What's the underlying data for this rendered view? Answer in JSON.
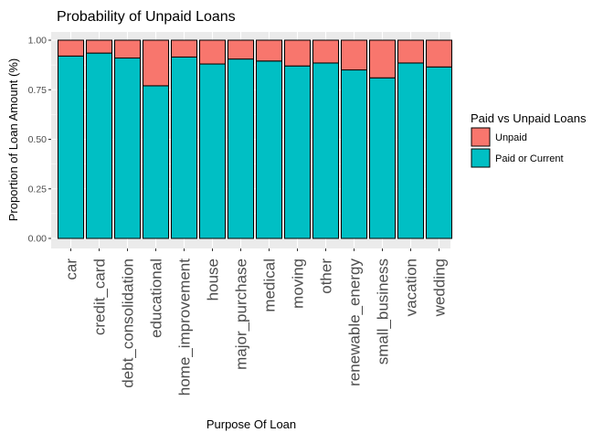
{
  "chart_data": {
    "type": "bar",
    "stacked": true,
    "title": "Probability of Unpaid Loans",
    "xlabel": "Purpose Of Loan",
    "ylabel": "Proportion of Loan Amount (%)",
    "ylim": [
      0,
      1
    ],
    "y_ticks": [
      "0.00",
      "0.25",
      "0.50",
      "0.75",
      "1.00"
    ],
    "grid": true,
    "legend_position": "right",
    "legend_title": "Paid vs Unpaid Loans",
    "categories": [
      "car",
      "credit_card",
      "debt_consolidation",
      "educational",
      "home_improvement",
      "house",
      "major_purchase",
      "medical",
      "moving",
      "other",
      "renewable_energy",
      "small_business",
      "vacation",
      "wedding"
    ],
    "series": [
      {
        "name": "Paid or Current",
        "color": "#00BFC4",
        "values": [
          0.92,
          0.935,
          0.91,
          0.77,
          0.915,
          0.88,
          0.905,
          0.895,
          0.87,
          0.885,
          0.85,
          0.81,
          0.885,
          0.865
        ]
      },
      {
        "name": "Unpaid",
        "color": "#F8766D",
        "values": [
          0.08,
          0.065,
          0.09,
          0.23,
          0.085,
          0.12,
          0.095,
          0.105,
          0.13,
          0.115,
          0.15,
          0.19,
          0.115,
          0.135
        ]
      }
    ],
    "legend_order": [
      "Unpaid",
      "Paid or Current"
    ],
    "panel_background": "#EBEBEB",
    "grid_color": "#FFFFFF"
  }
}
